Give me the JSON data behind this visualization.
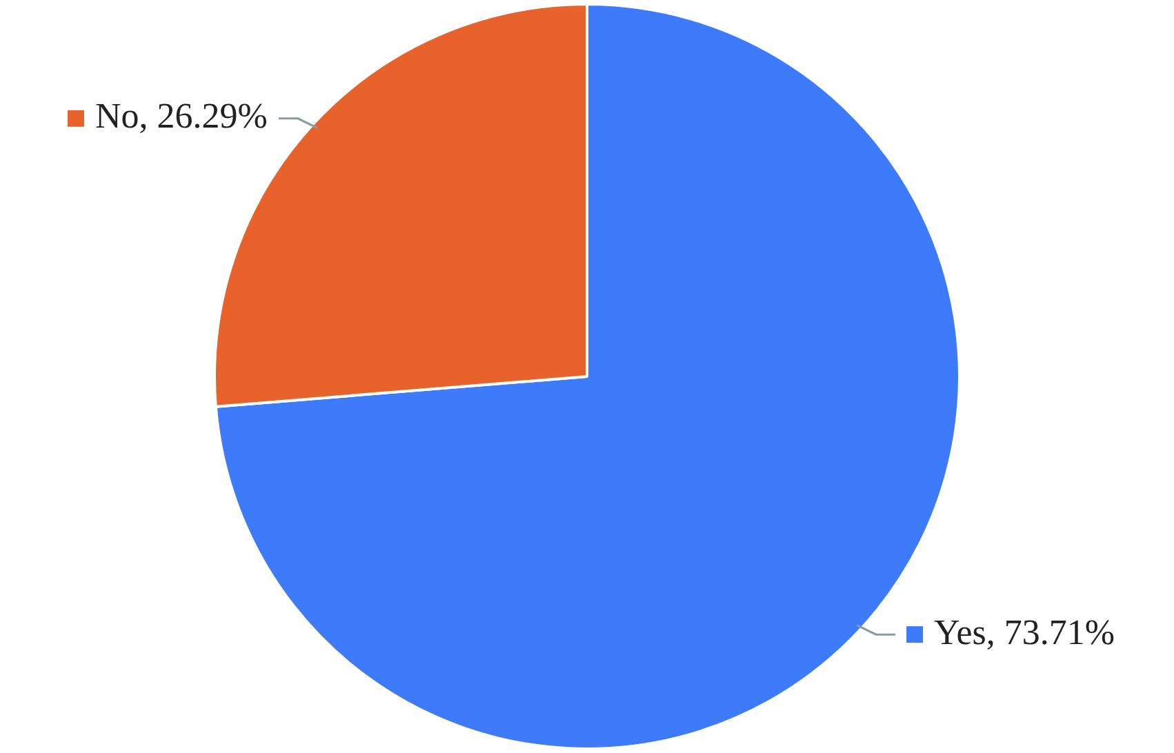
{
  "chart_data": {
    "type": "pie",
    "categories": [
      "Yes",
      "No"
    ],
    "values": [
      73.71,
      26.29
    ],
    "colors": [
      "#3e7bfa",
      "#e8622c"
    ],
    "value_labels": [
      "73.71%",
      "26.29%"
    ],
    "legend": "bottom right"
  }
}
